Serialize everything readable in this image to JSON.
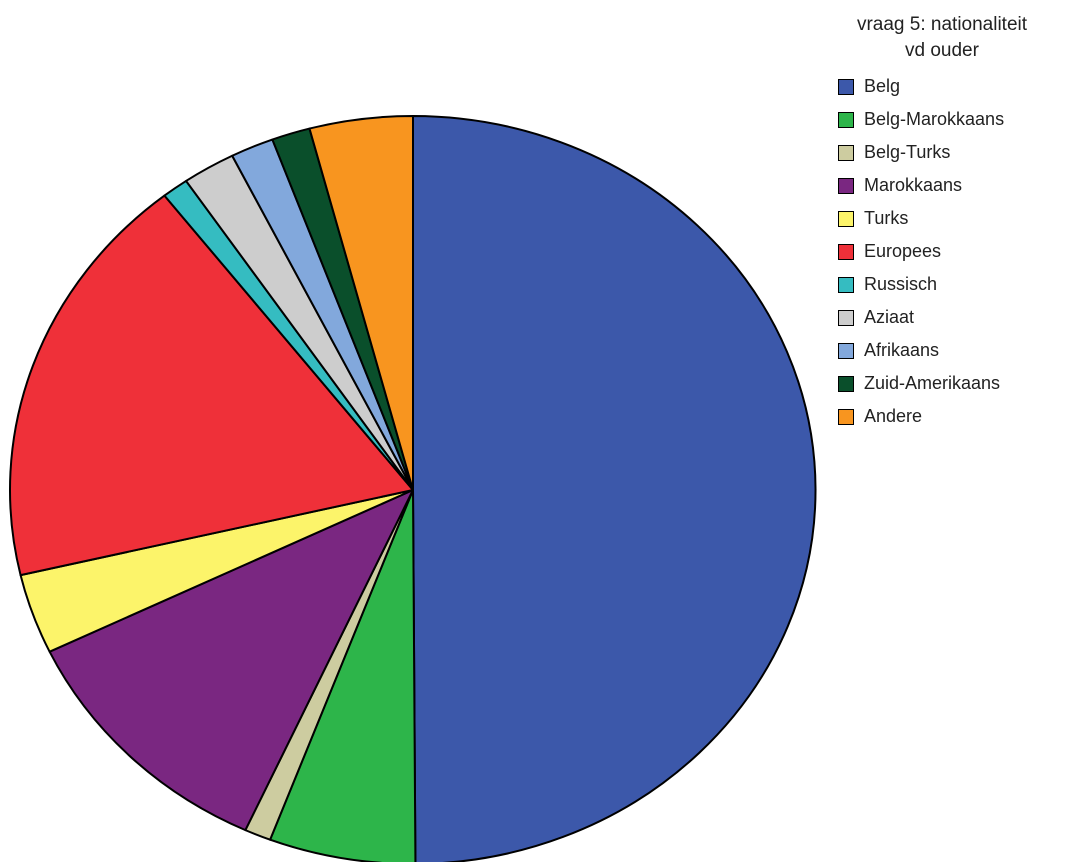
{
  "chart_data": {
    "type": "pie",
    "title": "vraag 5: nationaliteit\nvd ouder",
    "legend_position": "top-right",
    "start": "12 o'clock, clockwise",
    "slices": [
      {
        "label": "Belg",
        "value": 51.9,
        "color": "#3c58aa"
      },
      {
        "label": "Belg-Marokkaans",
        "value": 6.1,
        "color": "#2db54a"
      },
      {
        "label": "Belg-Turks",
        "value": 1.1,
        "color": "#cdcca0"
      },
      {
        "label": "Marokkaans",
        "value": 11.5,
        "color": "#7a2781"
      },
      {
        "label": "Turks",
        "value": 3.6,
        "color": "#fcf46a"
      },
      {
        "label": "Europees",
        "value": 18.8,
        "color": "#ef3039"
      },
      {
        "label": "Russisch",
        "value": 1.1,
        "color": "#35bcc1"
      },
      {
        "label": "Aziaat",
        "value": 2.2,
        "color": "#cdcdcd"
      },
      {
        "label": "Afrikaans",
        "value": 1.8,
        "color": "#82a8dc"
      },
      {
        "label": "Zuid-Amerikaans",
        "value": 1.6,
        "color": "#0a4f2b"
      },
      {
        "label": "Andere",
        "value": 4.3,
        "color": "#f8951f"
      }
    ]
  }
}
